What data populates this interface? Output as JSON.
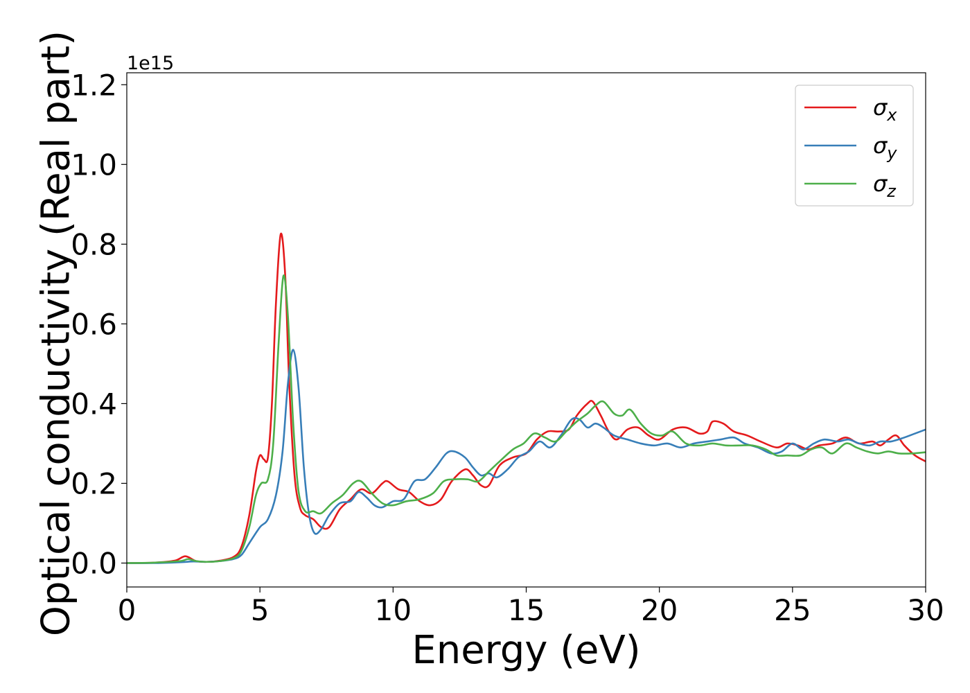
{
  "chart_data": {
    "type": "line",
    "xlabel": "Energy (eV)",
    "ylabel": "Optical conductivity (Real part)",
    "y_offset_label": "1e15",
    "xlim": [
      0,
      30
    ],
    "ylim": [
      -0.06,
      1.23
    ],
    "xticks": [
      0,
      5,
      10,
      15,
      20,
      25,
      30
    ],
    "xtick_labels": [
      "0",
      "5",
      "10",
      "15",
      "20",
      "25",
      "30"
    ],
    "yticks": [
      0.0,
      0.2,
      0.4,
      0.6,
      0.8,
      1.0,
      1.2
    ],
    "ytick_labels": [
      "0.0",
      "0.2",
      "0.4",
      "0.6",
      "0.8",
      "1.0",
      "1.2"
    ],
    "grid": false,
    "legend_position": "top-right",
    "series": [
      {
        "name": "σx",
        "color": "#e41a1c",
        "points": [
          [
            0,
            0
          ],
          [
            1,
            0.001
          ],
          [
            1.8,
            0.006
          ],
          [
            2.2,
            0.017
          ],
          [
            2.6,
            0.005
          ],
          [
            3,
            0.003
          ],
          [
            3.5,
            0.006
          ],
          [
            4,
            0.015
          ],
          [
            4.3,
            0.04
          ],
          [
            4.6,
            0.12
          ],
          [
            4.85,
            0.23
          ],
          [
            5.0,
            0.27
          ],
          [
            5.15,
            0.26
          ],
          [
            5.3,
            0.265
          ],
          [
            5.45,
            0.4
          ],
          [
            5.6,
            0.65
          ],
          [
            5.78,
            0.825
          ],
          [
            5.95,
            0.72
          ],
          [
            6.1,
            0.45
          ],
          [
            6.3,
            0.22
          ],
          [
            6.5,
            0.14
          ],
          [
            6.7,
            0.12
          ],
          [
            7.0,
            0.11
          ],
          [
            7.3,
            0.09
          ],
          [
            7.6,
            0.09
          ],
          [
            8.0,
            0.135
          ],
          [
            8.4,
            0.16
          ],
          [
            8.8,
            0.185
          ],
          [
            9.2,
            0.175
          ],
          [
            9.6,
            0.2
          ],
          [
            9.8,
            0.205
          ],
          [
            10.2,
            0.185
          ],
          [
            10.6,
            0.178
          ],
          [
            11.0,
            0.155
          ],
          [
            11.4,
            0.145
          ],
          [
            11.8,
            0.16
          ],
          [
            12.2,
            0.205
          ],
          [
            12.7,
            0.235
          ],
          [
            13.0,
            0.22
          ],
          [
            13.3,
            0.195
          ],
          [
            13.6,
            0.195
          ],
          [
            14.0,
            0.245
          ],
          [
            14.5,
            0.265
          ],
          [
            15.0,
            0.275
          ],
          [
            15.4,
            0.31
          ],
          [
            15.8,
            0.33
          ],
          [
            16.2,
            0.33
          ],
          [
            16.6,
            0.335
          ],
          [
            16.9,
            0.37
          ],
          [
            17.3,
            0.4
          ],
          [
            17.5,
            0.405
          ],
          [
            17.8,
            0.37
          ],
          [
            18.1,
            0.33
          ],
          [
            18.4,
            0.31
          ],
          [
            18.8,
            0.335
          ],
          [
            19.2,
            0.34
          ],
          [
            19.6,
            0.32
          ],
          [
            20.0,
            0.31
          ],
          [
            20.5,
            0.335
          ],
          [
            21.0,
            0.34
          ],
          [
            21.5,
            0.325
          ],
          [
            21.8,
            0.33
          ],
          [
            22.0,
            0.355
          ],
          [
            22.4,
            0.35
          ],
          [
            22.8,
            0.33
          ],
          [
            23.3,
            0.32
          ],
          [
            23.8,
            0.305
          ],
          [
            24.4,
            0.29
          ],
          [
            24.8,
            0.3
          ],
          [
            25.2,
            0.295
          ],
          [
            25.6,
            0.285
          ],
          [
            26.0,
            0.295
          ],
          [
            26.5,
            0.3
          ],
          [
            27.0,
            0.315
          ],
          [
            27.5,
            0.3
          ],
          [
            28.0,
            0.305
          ],
          [
            28.3,
            0.295
          ],
          [
            28.6,
            0.31
          ],
          [
            28.9,
            0.32
          ],
          [
            29.2,
            0.295
          ],
          [
            29.6,
            0.27
          ],
          [
            30,
            0.255
          ]
        ]
      },
      {
        "name": "σy",
        "color": "#377eb8",
        "points": [
          [
            0,
            0
          ],
          [
            1,
            0.0
          ],
          [
            2,
            0.002
          ],
          [
            2.5,
            0.004
          ],
          [
            3,
            0.003
          ],
          [
            3.5,
            0.005
          ],
          [
            4,
            0.01
          ],
          [
            4.3,
            0.02
          ],
          [
            4.6,
            0.05
          ],
          [
            5.0,
            0.09
          ],
          [
            5.3,
            0.11
          ],
          [
            5.6,
            0.17
          ],
          [
            5.85,
            0.28
          ],
          [
            6.05,
            0.45
          ],
          [
            6.25,
            0.535
          ],
          [
            6.45,
            0.44
          ],
          [
            6.65,
            0.24
          ],
          [
            6.85,
            0.12
          ],
          [
            7.05,
            0.075
          ],
          [
            7.3,
            0.085
          ],
          [
            7.6,
            0.12
          ],
          [
            8.0,
            0.15
          ],
          [
            8.4,
            0.155
          ],
          [
            8.7,
            0.178
          ],
          [
            9.0,
            0.165
          ],
          [
            9.3,
            0.145
          ],
          [
            9.6,
            0.14
          ],
          [
            10.0,
            0.155
          ],
          [
            10.4,
            0.16
          ],
          [
            10.8,
            0.205
          ],
          [
            11.2,
            0.21
          ],
          [
            11.6,
            0.24
          ],
          [
            12.0,
            0.275
          ],
          [
            12.3,
            0.28
          ],
          [
            12.7,
            0.265
          ],
          [
            13.0,
            0.24
          ],
          [
            13.3,
            0.22
          ],
          [
            13.6,
            0.225
          ],
          [
            13.9,
            0.215
          ],
          [
            14.3,
            0.235
          ],
          [
            14.7,
            0.265
          ],
          [
            15.1,
            0.28
          ],
          [
            15.5,
            0.305
          ],
          [
            15.9,
            0.29
          ],
          [
            16.3,
            0.32
          ],
          [
            16.7,
            0.36
          ],
          [
            17.0,
            0.36
          ],
          [
            17.3,
            0.34
          ],
          [
            17.6,
            0.35
          ],
          [
            17.9,
            0.34
          ],
          [
            18.3,
            0.32
          ],
          [
            18.8,
            0.31
          ],
          [
            19.3,
            0.3
          ],
          [
            19.8,
            0.295
          ],
          [
            20.3,
            0.3
          ],
          [
            20.8,
            0.29
          ],
          [
            21.3,
            0.3
          ],
          [
            21.8,
            0.305
          ],
          [
            22.3,
            0.31
          ],
          [
            22.8,
            0.315
          ],
          [
            23.2,
            0.3
          ],
          [
            23.7,
            0.29
          ],
          [
            24.2,
            0.275
          ],
          [
            24.6,
            0.28
          ],
          [
            25.0,
            0.3
          ],
          [
            25.4,
            0.285
          ],
          [
            25.8,
            0.3
          ],
          [
            26.2,
            0.31
          ],
          [
            26.7,
            0.305
          ],
          [
            27.1,
            0.31
          ],
          [
            27.5,
            0.3
          ],
          [
            27.9,
            0.295
          ],
          [
            28.3,
            0.305
          ],
          [
            28.7,
            0.305
          ],
          [
            29.2,
            0.315
          ],
          [
            29.6,
            0.325
          ],
          [
            30,
            0.335
          ]
        ]
      },
      {
        "name": "σz",
        "color": "#4daf4a",
        "points": [
          [
            0,
            0
          ],
          [
            1,
            0.001
          ],
          [
            2,
            0.005
          ],
          [
            2.3,
            0.01
          ],
          [
            2.6,
            0.005
          ],
          [
            3,
            0.003
          ],
          [
            3.5,
            0.005
          ],
          [
            4,
            0.012
          ],
          [
            4.3,
            0.03
          ],
          [
            4.6,
            0.09
          ],
          [
            4.85,
            0.17
          ],
          [
            5.05,
            0.2
          ],
          [
            5.3,
            0.21
          ],
          [
            5.5,
            0.3
          ],
          [
            5.7,
            0.55
          ],
          [
            5.88,
            0.72
          ],
          [
            6.05,
            0.62
          ],
          [
            6.25,
            0.35
          ],
          [
            6.45,
            0.18
          ],
          [
            6.7,
            0.13
          ],
          [
            7.0,
            0.13
          ],
          [
            7.3,
            0.125
          ],
          [
            7.7,
            0.15
          ],
          [
            8.1,
            0.17
          ],
          [
            8.5,
            0.2
          ],
          [
            8.8,
            0.205
          ],
          [
            9.2,
            0.175
          ],
          [
            9.6,
            0.15
          ],
          [
            10.0,
            0.145
          ],
          [
            10.5,
            0.155
          ],
          [
            11.0,
            0.16
          ],
          [
            11.5,
            0.175
          ],
          [
            11.9,
            0.205
          ],
          [
            12.3,
            0.21
          ],
          [
            12.8,
            0.21
          ],
          [
            13.2,
            0.205
          ],
          [
            13.6,
            0.23
          ],
          [
            14.0,
            0.255
          ],
          [
            14.5,
            0.285
          ],
          [
            14.9,
            0.3
          ],
          [
            15.3,
            0.325
          ],
          [
            15.7,
            0.315
          ],
          [
            16.1,
            0.305
          ],
          [
            16.5,
            0.33
          ],
          [
            16.9,
            0.355
          ],
          [
            17.3,
            0.375
          ],
          [
            17.6,
            0.395
          ],
          [
            17.9,
            0.405
          ],
          [
            18.3,
            0.375
          ],
          [
            18.6,
            0.37
          ],
          [
            18.9,
            0.385
          ],
          [
            19.3,
            0.35
          ],
          [
            19.7,
            0.325
          ],
          [
            20.1,
            0.32
          ],
          [
            20.5,
            0.33
          ],
          [
            21.0,
            0.3
          ],
          [
            21.5,
            0.295
          ],
          [
            22.0,
            0.3
          ],
          [
            22.5,
            0.295
          ],
          [
            23.0,
            0.295
          ],
          [
            23.5,
            0.295
          ],
          [
            24.0,
            0.285
          ],
          [
            24.4,
            0.27
          ],
          [
            24.8,
            0.27
          ],
          [
            25.3,
            0.27
          ],
          [
            25.7,
            0.285
          ],
          [
            26.1,
            0.29
          ],
          [
            26.5,
            0.275
          ],
          [
            27.0,
            0.3
          ],
          [
            27.4,
            0.29
          ],
          [
            27.8,
            0.28
          ],
          [
            28.2,
            0.275
          ],
          [
            28.6,
            0.28
          ],
          [
            29.0,
            0.275
          ],
          [
            29.5,
            0.275
          ],
          [
            30,
            0.278
          ]
        ]
      }
    ]
  }
}
